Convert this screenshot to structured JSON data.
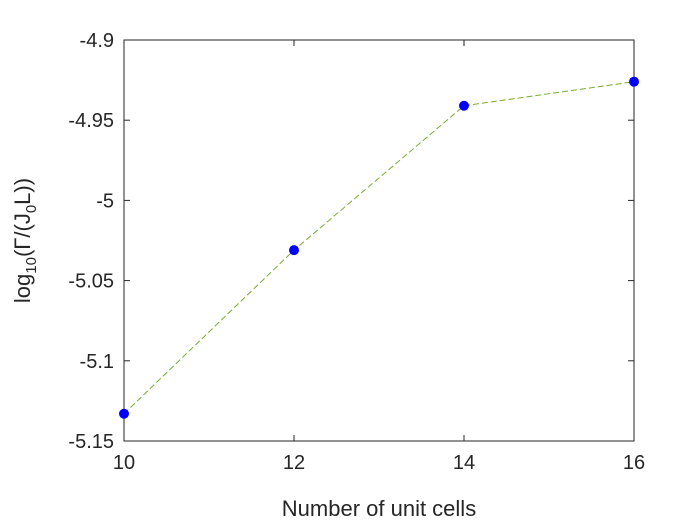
{
  "chart_data": {
    "type": "line",
    "x": [
      10,
      12,
      14,
      16
    ],
    "series": [
      {
        "values": [
          -5.133,
          -5.031,
          -4.941,
          -4.926
        ],
        "line_color": "#77ac30",
        "line_style": "dashed",
        "marker": "circle",
        "marker_color": "#0000ff"
      }
    ],
    "xlabel": "Number of unit cells",
    "ylabel_parts": {
      "a": "log",
      "a_sub": "10",
      "b": "(Γ/(J",
      "b_sub": "0",
      "c": "L))"
    },
    "xlim": [
      10,
      16
    ],
    "ylim": [
      -5.15,
      -4.9
    ],
    "xticks": [
      10,
      12,
      14,
      16
    ],
    "yticks": [
      -5.15,
      -5.1,
      -5.05,
      -5,
      -4.95,
      -4.9
    ],
    "xtick_labels": [
      "10",
      "12",
      "14",
      "16"
    ],
    "ytick_labels": [
      "-5.15",
      "-5.1",
      "-5.05",
      "-5",
      "-4.95",
      "-4.9"
    ],
    "grid": false,
    "box": true
  }
}
